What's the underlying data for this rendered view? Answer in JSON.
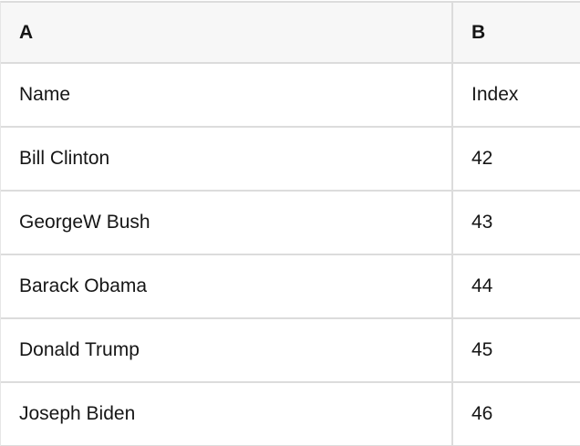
{
  "table": {
    "column_headers": [
      "A",
      "B"
    ],
    "field_labels": {
      "a": "Name",
      "b": "Index"
    },
    "rows": [
      {
        "a": "Bill Clinton",
        "b": "42"
      },
      {
        "a": "GeorgeW Bush",
        "b": "43"
      },
      {
        "a": "Barack Obama",
        "b": "44"
      },
      {
        "a": "Donald Trump",
        "b": "45"
      },
      {
        "a": "Joseph Biden",
        "b": "46"
      }
    ]
  },
  "colors": {
    "header-bg": "#f7f7f7",
    "row-bg": "#ffffff",
    "border": "#dcdcdc",
    "text": "#161616"
  }
}
